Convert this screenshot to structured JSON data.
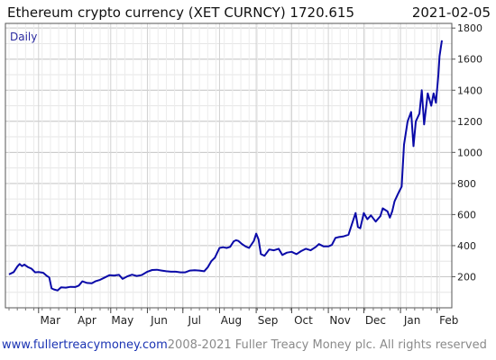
{
  "header": {
    "title": "Ethereum crypto currency  (XET CURNCY) 1720.615",
    "date": "2021-02-05"
  },
  "footer": {
    "link": "www.fullertreacymoney.com",
    "copyright": "2008-2021 Fuller Treacy Money plc. All rights reserved"
  },
  "colors": {
    "line": "#0a0aa8",
    "grid": "#cfcfcf",
    "label": "#2a2aa0"
  },
  "chart_data": {
    "type": "line",
    "title": "Ethereum crypto currency  (XET CURNCY) 1720.615",
    "period_label": "Daily",
    "y_range": [
      0,
      1830
    ],
    "y_ticks": [
      200,
      400,
      600,
      800,
      1000,
      1200,
      1400,
      1600,
      1800
    ],
    "x_range": [
      "2020-02-05",
      "2021-02-05"
    ],
    "x_ticks": [
      {
        "label": "Mar",
        "date": "2020-03-01"
      },
      {
        "label": "Apr",
        "date": "2020-04-01"
      },
      {
        "label": "May",
        "date": "2020-05-01"
      },
      {
        "label": "Jun",
        "date": "2020-06-01"
      },
      {
        "label": "Jul",
        "date": "2020-07-01"
      },
      {
        "label": "Aug",
        "date": "2020-08-01"
      },
      {
        "label": "Sep",
        "date": "2020-09-01"
      },
      {
        "label": "Oct",
        "date": "2020-10-01"
      },
      {
        "label": "Nov",
        "date": "2020-11-01"
      },
      {
        "label": "Dec",
        "date": "2020-12-01"
      },
      {
        "label": "Jan",
        "date": "2021-01-01"
      },
      {
        "label": "Feb",
        "date": "2021-02-01"
      }
    ],
    "grid": true,
    "series": [
      {
        "points": [
          [
            "2020-02-05",
            215
          ],
          [
            "2020-02-09",
            230
          ],
          [
            "2020-02-12",
            265
          ],
          [
            "2020-02-14",
            282
          ],
          [
            "2020-02-16",
            268
          ],
          [
            "2020-02-18",
            278
          ],
          [
            "2020-02-21",
            262
          ],
          [
            "2020-02-24",
            252
          ],
          [
            "2020-02-27",
            228
          ],
          [
            "2020-03-01",
            230
          ],
          [
            "2020-03-05",
            225
          ],
          [
            "2020-03-08",
            205
          ],
          [
            "2020-03-10",
            196
          ],
          [
            "2020-03-12",
            125
          ],
          [
            "2020-03-14",
            118
          ],
          [
            "2020-03-17",
            112
          ],
          [
            "2020-03-20",
            132
          ],
          [
            "2020-03-24",
            130
          ],
          [
            "2020-03-28",
            135
          ],
          [
            "2020-04-01",
            134
          ],
          [
            "2020-04-04",
            143
          ],
          [
            "2020-04-07",
            170
          ],
          [
            "2020-04-11",
            160
          ],
          [
            "2020-04-15",
            158
          ],
          [
            "2020-04-18",
            170
          ],
          [
            "2020-04-22",
            180
          ],
          [
            "2020-04-26",
            195
          ],
          [
            "2020-04-30",
            210
          ],
          [
            "2020-05-04",
            208
          ],
          [
            "2020-05-08",
            212
          ],
          [
            "2020-05-11",
            186
          ],
          [
            "2020-05-15",
            202
          ],
          [
            "2020-05-19",
            213
          ],
          [
            "2020-05-23",
            205
          ],
          [
            "2020-05-27",
            210
          ],
          [
            "2020-06-01",
            232
          ],
          [
            "2020-06-05",
            243
          ],
          [
            "2020-06-09",
            245
          ],
          [
            "2020-06-13",
            240
          ],
          [
            "2020-06-17",
            235
          ],
          [
            "2020-06-21",
            232
          ],
          [
            "2020-06-25",
            232
          ],
          [
            "2020-06-29",
            228
          ],
          [
            "2020-07-03",
            228
          ],
          [
            "2020-07-07",
            240
          ],
          [
            "2020-07-11",
            242
          ],
          [
            "2020-07-15",
            240
          ],
          [
            "2020-07-19",
            235
          ],
          [
            "2020-07-22",
            260
          ],
          [
            "2020-07-25",
            300
          ],
          [
            "2020-07-28",
            322
          ],
          [
            "2020-08-01",
            385
          ],
          [
            "2020-08-04",
            390
          ],
          [
            "2020-08-07",
            385
          ],
          [
            "2020-08-10",
            392
          ],
          [
            "2020-08-13",
            428
          ],
          [
            "2020-08-15",
            435
          ],
          [
            "2020-08-17",
            430
          ],
          [
            "2020-08-20",
            410
          ],
          [
            "2020-08-23",
            395
          ],
          [
            "2020-08-26",
            385
          ],
          [
            "2020-08-30",
            430
          ],
          [
            "2020-09-01",
            477
          ],
          [
            "2020-09-03",
            440
          ],
          [
            "2020-09-05",
            345
          ],
          [
            "2020-09-08",
            335
          ],
          [
            "2020-09-12",
            375
          ],
          [
            "2020-09-16",
            370
          ],
          [
            "2020-09-20",
            380
          ],
          [
            "2020-09-23",
            340
          ],
          [
            "2020-09-27",
            355
          ],
          [
            "2020-10-01",
            360
          ],
          [
            "2020-10-05",
            345
          ],
          [
            "2020-10-09",
            365
          ],
          [
            "2020-10-13",
            380
          ],
          [
            "2020-10-17",
            370
          ],
          [
            "2020-10-21",
            390
          ],
          [
            "2020-10-24",
            410
          ],
          [
            "2020-10-28",
            395
          ],
          [
            "2020-11-01",
            395
          ],
          [
            "2020-11-04",
            405
          ],
          [
            "2020-11-07",
            450
          ],
          [
            "2020-11-10",
            455
          ],
          [
            "2020-11-14",
            460
          ],
          [
            "2020-11-18",
            470
          ],
          [
            "2020-11-21",
            540
          ],
          [
            "2020-11-24",
            610
          ],
          [
            "2020-11-26",
            520
          ],
          [
            "2020-11-28",
            512
          ],
          [
            "2020-12-01",
            610
          ],
          [
            "2020-12-04",
            570
          ],
          [
            "2020-12-07",
            595
          ],
          [
            "2020-12-11",
            555
          ],
          [
            "2020-12-15",
            590
          ],
          [
            "2020-12-17",
            640
          ],
          [
            "2020-12-21",
            620
          ],
          [
            "2020-12-23",
            580
          ],
          [
            "2020-12-25",
            620
          ],
          [
            "2020-12-27",
            685
          ],
          [
            "2020-12-30",
            735
          ],
          [
            "2021-01-02",
            780
          ],
          [
            "2021-01-04",
            1050
          ],
          [
            "2021-01-07",
            1200
          ],
          [
            "2021-01-10",
            1260
          ],
          [
            "2021-01-12",
            1040
          ],
          [
            "2021-01-14",
            1200
          ],
          [
            "2021-01-17",
            1250
          ],
          [
            "2021-01-19",
            1400
          ],
          [
            "2021-01-21",
            1180
          ],
          [
            "2021-01-24",
            1380
          ],
          [
            "2021-01-27",
            1300
          ],
          [
            "2021-01-29",
            1380
          ],
          [
            "2021-01-31",
            1320
          ],
          [
            "2021-02-02",
            1500
          ],
          [
            "2021-02-03",
            1620
          ],
          [
            "2021-02-05",
            1720.615
          ]
        ]
      }
    ]
  }
}
